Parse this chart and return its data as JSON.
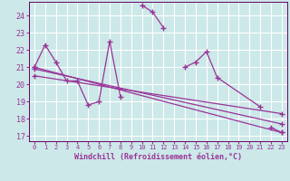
{
  "xlabel": "Windchill (Refroidissement éolien,°C)",
  "background_color": "#cce8e8",
  "grid_color": "#ffffff",
  "line_color": "#993399",
  "xlim": [
    -0.5,
    23.5
  ],
  "ylim": [
    16.7,
    24.8
  ],
  "yticks": [
    17,
    18,
    19,
    20,
    21,
    22,
    23,
    24
  ],
  "xticks": [
    0,
    1,
    2,
    3,
    4,
    5,
    6,
    7,
    8,
    9,
    10,
    11,
    12,
    13,
    14,
    15,
    16,
    17,
    18,
    19,
    20,
    21,
    22,
    23
  ],
  "series1_x": [
    0,
    1,
    2,
    3,
    4,
    5,
    6,
    7,
    8,
    10,
    11,
    12,
    14,
    15,
    16,
    17,
    21,
    22,
    23
  ],
  "series1_y": [
    21.0,
    22.3,
    21.3,
    20.2,
    20.2,
    18.8,
    19.0,
    22.5,
    19.3,
    24.6,
    24.2,
    23.3,
    21.0,
    21.3,
    21.9,
    20.4,
    18.7,
    17.5,
    17.2
  ],
  "seg_breaks": [
    8,
    12,
    17
  ],
  "series2_x": [
    0,
    23
  ],
  "series2_y": [
    21.0,
    17.2
  ],
  "series3_x": [
    0,
    23
  ],
  "series3_y": [
    20.5,
    18.3
  ],
  "series4_x": [
    0,
    23
  ],
  "series4_y": [
    20.9,
    17.7
  ]
}
